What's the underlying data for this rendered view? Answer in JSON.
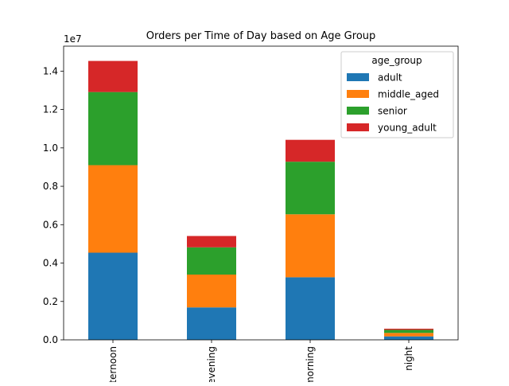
{
  "chart_data": {
    "type": "bar",
    "stacked": true,
    "title": "Orders per Time of Day based on Age Group",
    "xlabel": "",
    "ylabel": "",
    "y_scale_label": "1e7",
    "categories": [
      "afternoon",
      "evening",
      "morning",
      "night"
    ],
    "series": [
      {
        "name": "adult",
        "color": "#1f77b4",
        "values": [
          4540000,
          1690000,
          3260000,
          180000
        ]
      },
      {
        "name": "middle_aged",
        "color": "#ff7f0e",
        "values": [
          4560000,
          1710000,
          3280000,
          180000
        ]
      },
      {
        "name": "senior",
        "color": "#2ca02c",
        "values": [
          3810000,
          1420000,
          2740000,
          160000
        ]
      },
      {
        "name": "young_adult",
        "color": "#d62728",
        "values": [
          1620000,
          590000,
          1140000,
          60000
        ]
      }
    ],
    "ylim": [
      0,
      15300000
    ],
    "yticks": [
      0,
      2000000,
      4000000,
      6000000,
      8000000,
      10000000,
      12000000,
      14000000
    ],
    "ytick_labels": [
      "0.0",
      "0.2",
      "0.4",
      "0.6",
      "0.8",
      "1.0",
      "1.2",
      "1.4"
    ],
    "legend": {
      "title": "age_group",
      "placement": "top-right"
    },
    "grid": false
  }
}
